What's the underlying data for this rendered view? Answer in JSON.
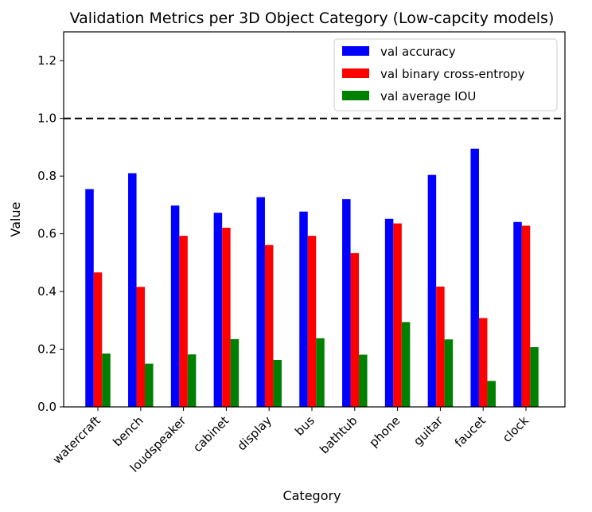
{
  "chart_data": {
    "type": "bar",
    "title": "Validation Metrics per 3D Object Category (Low-capcity models)",
    "xlabel": "Category",
    "ylabel": "Value",
    "ylim": [
      0,
      1.3
    ],
    "yticks": [
      0.0,
      0.2,
      0.4,
      0.6,
      0.8,
      1.0,
      1.2
    ],
    "reference_line": {
      "y": 1.0,
      "style": "dashed",
      "color": "#000000"
    },
    "grid": false,
    "legend_position": "top-right",
    "categories": [
      "watercraft",
      "bench",
      "loudspeaker",
      "cabinet",
      "display",
      "bus",
      "bathtub",
      "phone",
      "guitar",
      "faucet",
      "clock"
    ],
    "series": [
      {
        "name": "val accuracy",
        "color": "#0000ff",
        "values": [
          0.755,
          0.81,
          0.698,
          0.673,
          0.727,
          0.677,
          0.72,
          0.652,
          0.804,
          0.895,
          0.641
        ]
      },
      {
        "name": "val binary cross-entropy",
        "color": "#ff0000",
        "values": [
          0.466,
          0.416,
          0.593,
          0.621,
          0.561,
          0.593,
          0.533,
          0.636,
          0.417,
          0.308,
          0.628
        ]
      },
      {
        "name": "val average IOU",
        "color": "#008000",
        "values": [
          0.185,
          0.15,
          0.182,
          0.235,
          0.163,
          0.238,
          0.181,
          0.294,
          0.234,
          0.09,
          0.207
        ]
      }
    ]
  }
}
